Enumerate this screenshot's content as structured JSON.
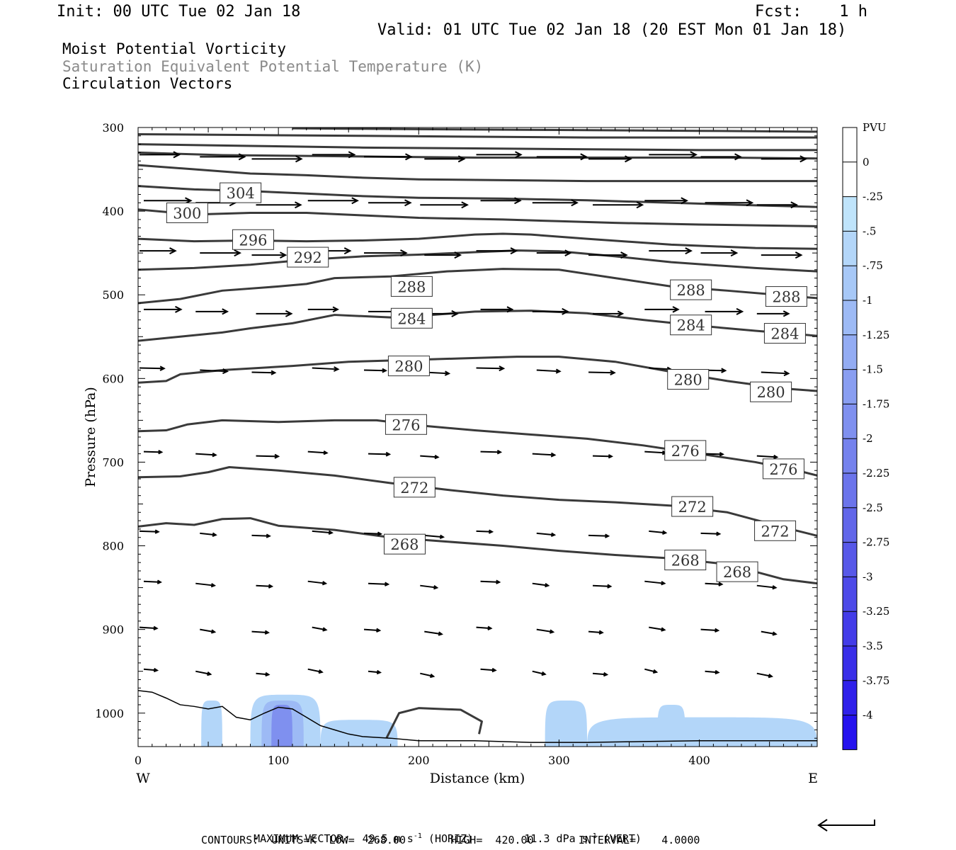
{
  "header": {
    "init": "Init: 00 UTC Tue 02 Jan 18",
    "fcst": "Fcst:    1 h",
    "valid": "Valid: 01 UTC Tue 02 Jan 18 (20 EST Mon 01 Jan 18)"
  },
  "titles": {
    "line1": "Moist Potential Vorticity",
    "line2": "Saturation Equivalent Potential Temperature (K)",
    "line3": "Circulation Vectors"
  },
  "footer": {
    "max_vector": "MAXIMUM VECTOR:  49.5 m s",
    "max_vector_horiz": "(HORIZ)",
    "max_vector_vert": "11.3 dPa s",
    "max_vector_vert_unit": "(VERT)",
    "exp": "-1",
    "contours": "CONTOURS:  UNITS=K  LOW=  268.00       HIGH=  420.00       INTERVAL=    4.0000"
  },
  "colorbar": {
    "unit": "PVU",
    "labels": [
      "0",
      "-.25",
      "-.5",
      "-.75",
      "-1",
      "-1.25",
      "-1.5",
      "-1.75",
      "-2",
      "-2.25",
      "-2.5",
      "-2.75",
      "-3",
      "-3.25",
      "-3.5",
      "-3.75",
      "-4"
    ],
    "colors": [
      "#ffffff",
      "#ffffff",
      "#bfe4fb",
      "#b3d6f9",
      "#a7c8f7",
      "#9dbaf5",
      "#93acf3",
      "#899ef1",
      "#7f90ef",
      "#7582ed",
      "#6b74eb",
      "#6166e9",
      "#5758e8",
      "#4d4ae8",
      "#433ce8",
      "#392ee8",
      "#2f20ea",
      "#2512ee"
    ]
  },
  "chart_data": {
    "type": "cross-section",
    "xlabel": "Distance (km)",
    "ylabel": "Pressure (hPa)",
    "xlim": [
      0,
      484
    ],
    "ylim": [
      300,
      1040
    ],
    "x_ticks": [
      0,
      100,
      200,
      300,
      400
    ],
    "y_ticks": [
      300,
      400,
      500,
      600,
      700,
      800,
      900,
      1000
    ],
    "x_end_labels": {
      "left": "W",
      "right": "E"
    },
    "theta_e_contours": [
      {
        "level": 268,
        "labels": [
          {
            "x": 190,
            "p": 798
          },
          {
            "x": 390,
            "p": 817
          },
          {
            "x": 427,
            "p": 831
          }
        ],
        "points": [
          [
            0,
            777
          ],
          [
            20,
            773
          ],
          [
            40,
            775
          ],
          [
            60,
            768
          ],
          [
            80,
            767
          ],
          [
            100,
            776
          ],
          [
            140,
            781
          ],
          [
            180,
            790
          ],
          [
            220,
            795
          ],
          [
            260,
            800
          ],
          [
            300,
            806
          ],
          [
            340,
            811
          ],
          [
            380,
            815
          ],
          [
            420,
            822
          ],
          [
            460,
            840
          ],
          [
            484,
            845
          ]
        ]
      },
      {
        "level": 272,
        "labels": [
          {
            "x": 197,
            "p": 730
          },
          {
            "x": 395,
            "p": 753
          },
          {
            "x": 454,
            "p": 782
          }
        ],
        "points": [
          [
            0,
            718
          ],
          [
            30,
            717
          ],
          [
            50,
            712
          ],
          [
            65,
            706
          ],
          [
            100,
            710
          ],
          [
            140,
            716
          ],
          [
            180,
            725
          ],
          [
            220,
            733
          ],
          [
            260,
            740
          ],
          [
            300,
            745
          ],
          [
            340,
            748
          ],
          [
            380,
            752
          ],
          [
            420,
            760
          ],
          [
            460,
            778
          ],
          [
            484,
            788
          ]
        ]
      },
      {
        "level": 272,
        "labels": [],
        "points": [
          [
            177,
            1030
          ],
          [
            186,
            1000
          ],
          [
            200,
            994
          ],
          [
            230,
            996
          ],
          [
            245,
            1010
          ],
          [
            243,
            1025
          ]
        ]
      },
      {
        "level": 276,
        "labels": [
          {
            "x": 191,
            "p": 655
          },
          {
            "x": 390,
            "p": 686
          },
          {
            "x": 460,
            "p": 708
          }
        ],
        "points": [
          [
            0,
            663
          ],
          [
            20,
            662
          ],
          [
            35,
            655
          ],
          [
            60,
            650
          ],
          [
            100,
            652
          ],
          [
            140,
            650
          ],
          [
            170,
            650
          ],
          [
            200,
            656
          ],
          [
            240,
            662
          ],
          [
            280,
            667
          ],
          [
            320,
            672
          ],
          [
            360,
            680
          ],
          [
            400,
            690
          ],
          [
            440,
            700
          ],
          [
            470,
            710
          ],
          [
            484,
            716
          ]
        ]
      },
      {
        "level": 280,
        "labels": [
          {
            "x": 193,
            "p": 585
          },
          {
            "x": 392,
            "p": 601
          },
          {
            "x": 451,
            "p": 616
          }
        ],
        "points": [
          [
            0,
            605
          ],
          [
            20,
            603
          ],
          [
            30,
            595
          ],
          [
            60,
            590
          ],
          [
            110,
            585
          ],
          [
            150,
            580
          ],
          [
            190,
            578
          ],
          [
            230,
            576
          ],
          [
            270,
            574
          ],
          [
            300,
            574
          ],
          [
            340,
            580
          ],
          [
            380,
            592
          ],
          [
            420,
            603
          ],
          [
            460,
            612
          ],
          [
            484,
            615
          ]
        ]
      },
      {
        "level": 284,
        "labels": [
          {
            "x": 195,
            "p": 528
          },
          {
            "x": 394,
            "p": 536
          },
          {
            "x": 461,
            "p": 546
          }
        ],
        "points": [
          [
            0,
            555
          ],
          [
            30,
            550
          ],
          [
            60,
            545
          ],
          [
            80,
            540
          ],
          [
            110,
            534
          ],
          [
            140,
            524
          ],
          [
            180,
            527
          ],
          [
            210,
            524
          ],
          [
            240,
            520
          ],
          [
            280,
            519
          ],
          [
            320,
            522
          ],
          [
            360,
            530
          ],
          [
            400,
            537
          ],
          [
            440,
            543
          ],
          [
            484,
            549
          ]
        ]
      },
      {
        "level": 288,
        "labels": [
          {
            "x": 195,
            "p": 490
          },
          {
            "x": 394,
            "p": 494
          },
          {
            "x": 462,
            "p": 502
          }
        ],
        "points": [
          [
            0,
            510
          ],
          [
            30,
            505
          ],
          [
            60,
            495
          ],
          [
            100,
            490
          ],
          [
            120,
            487
          ],
          [
            140,
            480
          ],
          [
            180,
            478
          ],
          [
            220,
            472
          ],
          [
            260,
            469
          ],
          [
            300,
            470
          ],
          [
            340,
            480
          ],
          [
            380,
            490
          ],
          [
            420,
            495
          ],
          [
            484,
            504
          ]
        ]
      },
      {
        "level": 292,
        "labels": [
          {
            "x": 121,
            "p": 455
          }
        ],
        "points": [
          [
            0,
            470
          ],
          [
            40,
            468
          ],
          [
            80,
            464
          ],
          [
            120,
            458
          ],
          [
            160,
            454
          ],
          [
            200,
            452
          ],
          [
            240,
            449
          ],
          [
            270,
            447
          ],
          [
            300,
            448
          ],
          [
            340,
            454
          ],
          [
            380,
            461
          ],
          [
            440,
            468
          ],
          [
            484,
            472
          ]
        ]
      },
      {
        "level": 296,
        "labels": [
          {
            "x": 82,
            "p": 434
          }
        ],
        "points": [
          [
            0,
            433
          ],
          [
            40,
            436
          ],
          [
            80,
            435
          ],
          [
            120,
            436
          ],
          [
            160,
            435
          ],
          [
            200,
            433
          ],
          [
            240,
            428
          ],
          [
            260,
            427
          ],
          [
            280,
            428
          ],
          [
            320,
            433
          ],
          [
            380,
            440
          ],
          [
            440,
            444
          ],
          [
            484,
            445
          ]
        ]
      },
      {
        "level": 300,
        "labels": [
          {
            "x": 35,
            "p": 402
          }
        ],
        "points": [
          [
            0,
            398
          ],
          [
            40,
            404
          ],
          [
            80,
            402
          ],
          [
            120,
            402
          ],
          [
            160,
            405
          ],
          [
            200,
            408
          ],
          [
            260,
            410
          ],
          [
            300,
            412
          ],
          [
            340,
            414
          ],
          [
            400,
            416
          ],
          [
            484,
            418
          ]
        ]
      },
      {
        "level": 304,
        "labels": [
          {
            "x": 73,
            "p": 378
          }
        ],
        "points": [
          [
            0,
            370
          ],
          [
            40,
            374
          ],
          [
            80,
            376
          ],
          [
            120,
            379
          ],
          [
            160,
            382
          ],
          [
            200,
            384
          ],
          [
            260,
            385
          ],
          [
            320,
            387
          ],
          [
            380,
            390
          ],
          [
            440,
            393
          ],
          [
            484,
            395
          ]
        ]
      },
      {
        "level": "",
        "labels": [],
        "points": [
          [
            0,
            345
          ],
          [
            40,
            350
          ],
          [
            80,
            355
          ],
          [
            120,
            357
          ],
          [
            160,
            360
          ],
          [
            200,
            362
          ],
          [
            260,
            363
          ],
          [
            320,
            364
          ],
          [
            380,
            364
          ],
          [
            440,
            364
          ],
          [
            484,
            364
          ]
        ]
      },
      {
        "level": "",
        "labels": [],
        "points": [
          [
            0,
            330
          ],
          [
            60,
            333
          ],
          [
            120,
            334
          ],
          [
            180,
            335
          ],
          [
            240,
            336
          ],
          [
            300,
            336
          ],
          [
            360,
            336
          ],
          [
            420,
            336
          ],
          [
            484,
            337
          ]
        ]
      },
      {
        "level": "",
        "labels": [],
        "points": [
          [
            0,
            320
          ],
          [
            80,
            322
          ],
          [
            160,
            324
          ],
          [
            240,
            325
          ],
          [
            320,
            326
          ],
          [
            400,
            327
          ],
          [
            484,
            327
          ]
        ]
      },
      {
        "level": "",
        "labels": [],
        "points": [
          [
            0,
            308
          ],
          [
            80,
            309
          ],
          [
            160,
            310
          ],
          [
            240,
            311
          ],
          [
            320,
            312
          ],
          [
            400,
            312
          ],
          [
            484,
            312
          ]
        ]
      },
      {
        "level": "",
        "labels": [],
        "points": [
          [
            110,
            301
          ],
          [
            200,
            302
          ],
          [
            300,
            303
          ],
          [
            400,
            304
          ],
          [
            484,
            305
          ]
        ]
      }
    ],
    "terrain": [
      [
        0,
        973
      ],
      [
        10,
        975
      ],
      [
        20,
        982
      ],
      [
        30,
        990
      ],
      [
        40,
        992
      ],
      [
        50,
        995
      ],
      [
        60,
        992
      ],
      [
        70,
        1005
      ],
      [
        80,
        1008
      ],
      [
        90,
        1000
      ],
      [
        100,
        993
      ],
      [
        110,
        995
      ],
      [
        120,
        1005
      ],
      [
        130,
        1015
      ],
      [
        140,
        1020
      ],
      [
        150,
        1025
      ],
      [
        160,
        1028
      ],
      [
        180,
        1030
      ],
      [
        200,
        1033
      ],
      [
        240,
        1033
      ],
      [
        280,
        1035
      ],
      [
        320,
        1035
      ],
      [
        360,
        1034
      ],
      [
        400,
        1033
      ],
      [
        440,
        1033
      ],
      [
        484,
        1033
      ]
    ],
    "mpv_shading": [
      {
        "x0": 45,
        "x1": 60,
        "ptop": 985,
        "level": -0.5
      },
      {
        "x0": 80,
        "x1": 130,
        "ptop": 978,
        "level": -0.5
      },
      {
        "x0": 88,
        "x1": 118,
        "ptop": 985,
        "level": -1.0
      },
      {
        "x0": 95,
        "x1": 110,
        "ptop": 990,
        "level": -1.75
      },
      {
        "x0": 130,
        "x1": 185,
        "ptop": 1008,
        "level": -0.5
      },
      {
        "x0": 290,
        "x1": 320,
        "ptop": 985,
        "level": -0.5
      },
      {
        "x0": 320,
        "x1": 484,
        "ptop": 1005,
        "level": -0.5
      },
      {
        "x0": 370,
        "x1": 390,
        "ptop": 990,
        "level": -0.5
      }
    ],
    "vectors": {
      "rows": [
        {
          "p": 335,
          "u": 1.0,
          "w": 0.0
        },
        {
          "p": 390,
          "u": 1.0,
          "w": 0.0
        },
        {
          "p": 450,
          "u": 0.85,
          "w": 0.0
        },
        {
          "p": 520,
          "u": 0.75,
          "w": 0.0
        },
        {
          "p": 590,
          "u": 0.55,
          "w": 0.3
        },
        {
          "p": 690,
          "u": 0.45,
          "w": 0.3
        },
        {
          "p": 785,
          "u": 0.4,
          "w": 0.4
        },
        {
          "p": 845,
          "u": 0.4,
          "w": 0.5
        },
        {
          "p": 900,
          "u": 0.35,
          "w": 0.6
        },
        {
          "p": 950,
          "u": 0.3,
          "w": 0.7
        }
      ],
      "x_positions": [
        0,
        40,
        80,
        120,
        160,
        200,
        240,
        280,
        320,
        360,
        400,
        440
      ]
    },
    "reference_vector": {
      "direction": "west"
    }
  }
}
